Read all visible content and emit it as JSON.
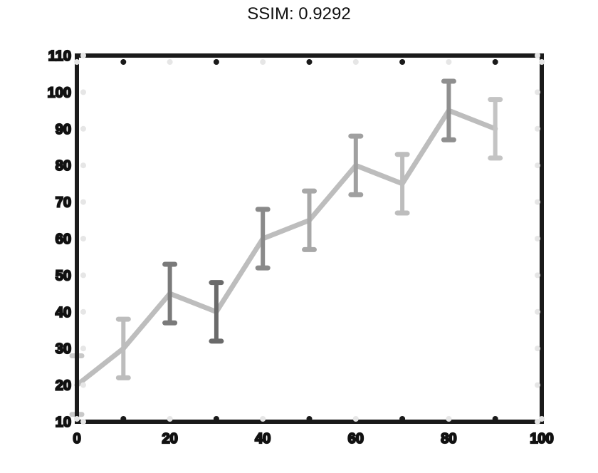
{
  "chart_data": {
    "type": "line",
    "title": "SSIM: 0.9292",
    "xlabel": "",
    "ylabel": "",
    "xlim": [
      0,
      100
    ],
    "ylim": [
      10,
      110
    ],
    "xticks": [
      0,
      10,
      20,
      30,
      40,
      50,
      60,
      70,
      80,
      90,
      100
    ],
    "xtick_labels": [
      "0",
      "",
      "20",
      "",
      "40",
      "",
      "60",
      "",
      "80",
      "",
      "100"
    ],
    "yticks": [
      10,
      20,
      30,
      40,
      50,
      60,
      70,
      80,
      90,
      100,
      110
    ],
    "ytick_labels": [
      "10",
      "20",
      "30",
      "40",
      "50",
      "60",
      "70",
      "80",
      "90",
      "100",
      "110"
    ],
    "grid": false,
    "series": [
      {
        "x": [
          0,
          10,
          20,
          30,
          40,
          50,
          60,
          70,
          80,
          90
        ],
        "values": [
          20,
          30,
          45,
          40,
          60,
          65,
          80,
          75,
          95,
          90
        ],
        "error": [
          8,
          8,
          8,
          8,
          8,
          8,
          8,
          8,
          8,
          8
        ],
        "color": "#bdbdbd"
      }
    ],
    "errorbar_colors": [
      "#c8c8c8",
      "#bdbdbd",
      "#7a7a7a",
      "#6a6a6a",
      "#8a8a8a",
      "#a8a8a8",
      "#a0a0a0",
      "#bdbdbd",
      "#8f8f8f",
      "#c4c4c4"
    ]
  }
}
